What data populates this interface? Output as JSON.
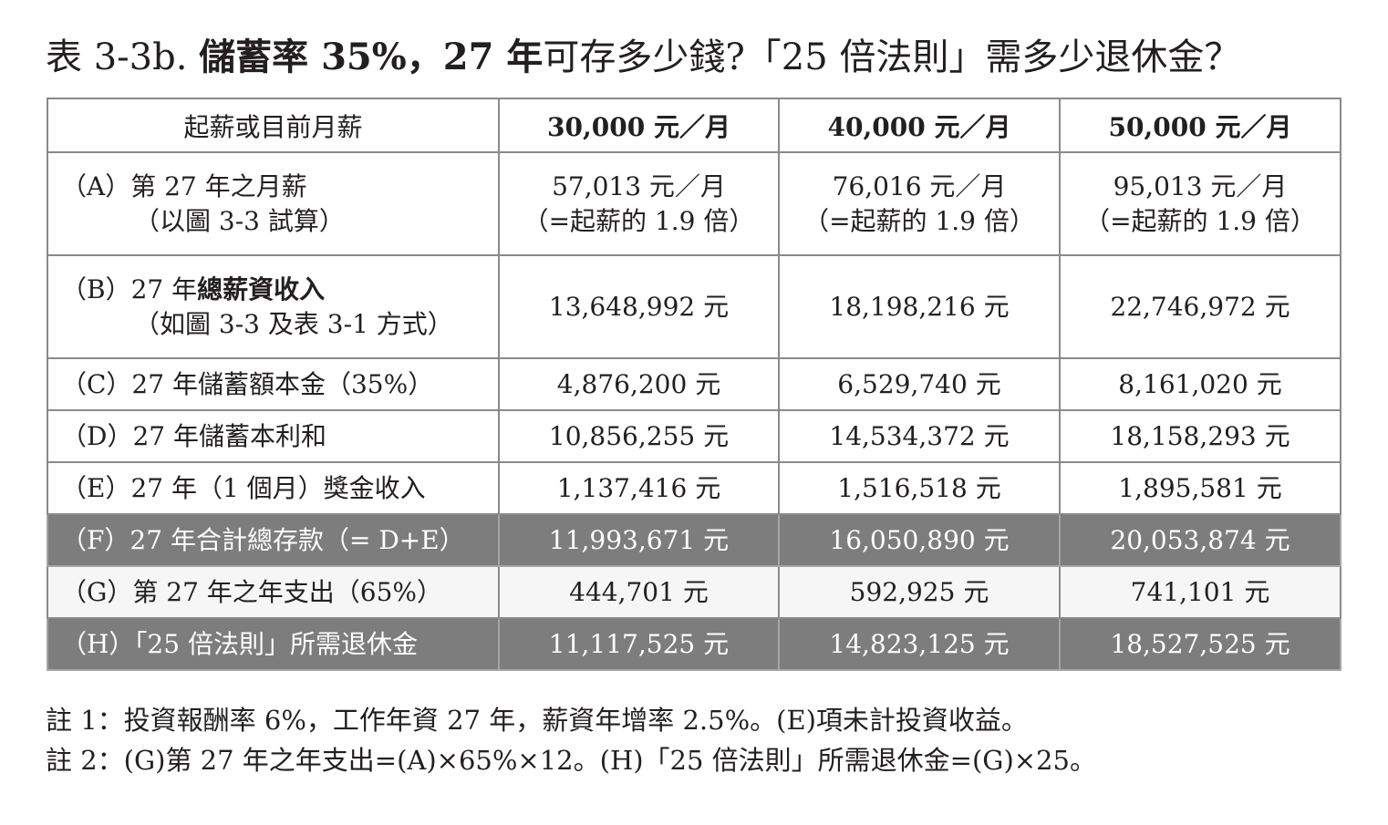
{
  "title": {
    "part1": "表 3-3b. ",
    "part2_bold": "儲蓄率 35%，27 年",
    "part3": "可存多少錢?「25 倍法則」需多少退休金？"
  },
  "table": {
    "headers": [
      "起薪或目前月薪",
      "30,000 元／月",
      "40,000 元／月",
      "50,000 元／月"
    ],
    "rows": [
      {
        "label_line1": "（A）第 27 年之月薪",
        "label_line2": "（以圖 3-3 試算）",
        "values": [
          {
            "line1": "57,013 元／月",
            "line2": "（=起薪的 1.9 倍）"
          },
          {
            "line1": "76,016 元／月",
            "line2": "（=起薪的 1.9 倍）"
          },
          {
            "line1": "95,013 元／月",
            "line2": "（=起薪的 1.9 倍）"
          }
        ]
      },
      {
        "label_line1_a": "（B）27 年",
        "label_line1_b": "總薪資收入",
        "label_line2": "（如圖 3-3 及表 3-1 方式）",
        "values": [
          "13,648,992 元",
          "18,198,216 元",
          "22,746,972 元"
        ]
      },
      {
        "label": "（C）27 年儲蓄額本金（35%）",
        "values": [
          "4,876,200 元",
          "6,529,740 元",
          "8,161,020 元"
        ]
      },
      {
        "label": "（D）27 年儲蓄本利和",
        "values": [
          "10,856,255 元",
          "14,534,372 元",
          "18,158,293 元"
        ]
      },
      {
        "label": "（E）27 年（1 個月）獎金收入",
        "values": [
          "1,137,416 元",
          "1,516,518 元",
          "1,895,581 元"
        ]
      },
      {
        "label": "（F）27 年合計總存款（= D+E）",
        "values": [
          "11,993,671 元",
          "16,050,890 元",
          "20,053,874 元"
        ]
      },
      {
        "label": "（G）第 27 年之年支出（65%）",
        "values": [
          "444,701 元",
          "592,925 元",
          "741,101 元"
        ]
      },
      {
        "label": "（H）「25 倍法則」所需退休金",
        "values": [
          "11,117,525 元",
          "14,823,125 元",
          "18,527,525 元"
        ]
      }
    ]
  },
  "notes": [
    "註 1：投資報酬率 6%，工作年資 27 年，薪資年增率 2.5%。(E)項未計投資收益。",
    "註 2：(G)第 27 年之年支出=(A)×65%×12。(H)「25 倍法則」所需退休金=(G)×25。"
  ],
  "colors": {
    "dark_row": "#7d7d7d",
    "light_row": "#f6f6f6",
    "grid": "#8a8a8a",
    "text": "#231f20"
  }
}
